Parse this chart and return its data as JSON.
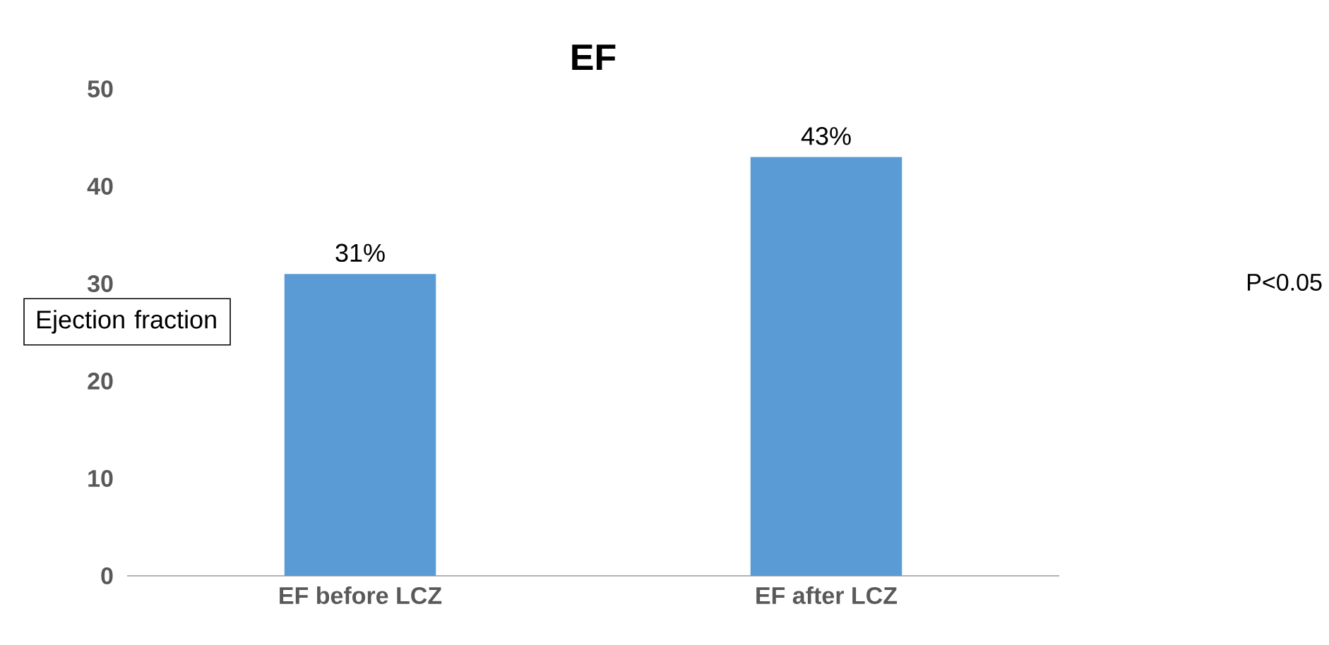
{
  "chart_data": {
    "type": "bar",
    "title": "EF",
    "ylabel": "Ejection fraction",
    "categories": [
      "EF before LCZ",
      "EF after LCZ"
    ],
    "values": [
      31,
      43
    ],
    "value_labels": [
      "31%",
      "43%"
    ],
    "color": "#5b9bd5",
    "ylim": [
      0,
      50
    ],
    "yticks": [
      0,
      10,
      20,
      30,
      40,
      50
    ],
    "annotations": [
      "P<0.05"
    ]
  }
}
